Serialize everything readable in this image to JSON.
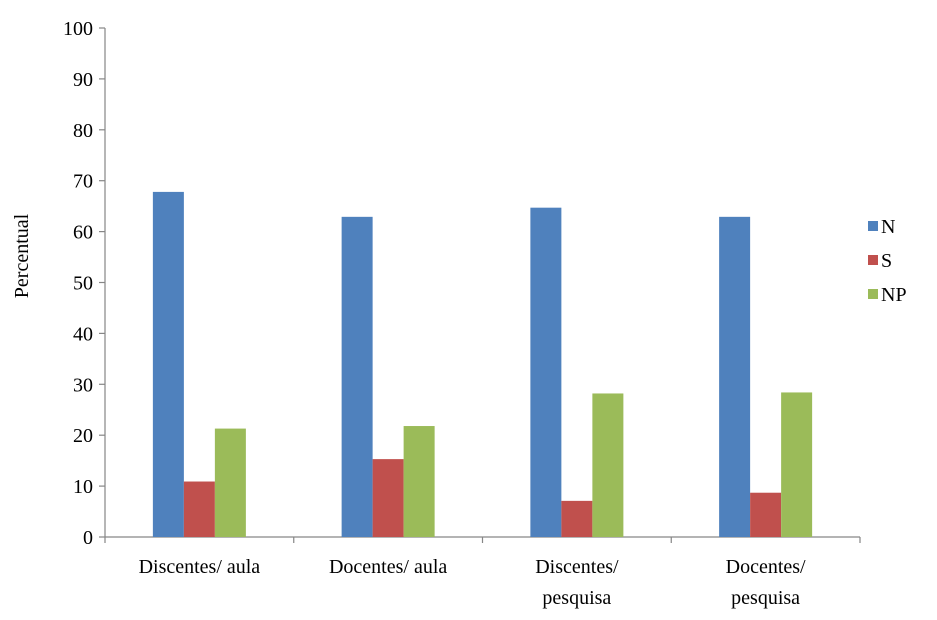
{
  "chart_data": {
    "type": "bar",
    "title": "",
    "xlabel": "",
    "ylabel": "Percentual",
    "ylim": [
      0,
      100
    ],
    "yticks": [
      0,
      10,
      20,
      30,
      40,
      50,
      60,
      70,
      80,
      90,
      100
    ],
    "grid": false,
    "legend_position": "right",
    "categories": [
      [
        "Discentes/ aula"
      ],
      [
        "Docentes/ aula"
      ],
      [
        "Discentes/",
        "pesquisa"
      ],
      [
        "Docentes/",
        "pesquisa"
      ]
    ],
    "series": [
      {
        "name": "N",
        "color": "#4F81BD",
        "values": [
          67.8,
          62.9,
          64.7,
          62.9
        ]
      },
      {
        "name": "S",
        "color": "#C0504D",
        "values": [
          10.9,
          15.3,
          7.1,
          8.7
        ]
      },
      {
        "name": "NP",
        "color": "#9BBB59",
        "values": [
          21.3,
          21.8,
          28.2,
          28.4
        ]
      }
    ]
  }
}
